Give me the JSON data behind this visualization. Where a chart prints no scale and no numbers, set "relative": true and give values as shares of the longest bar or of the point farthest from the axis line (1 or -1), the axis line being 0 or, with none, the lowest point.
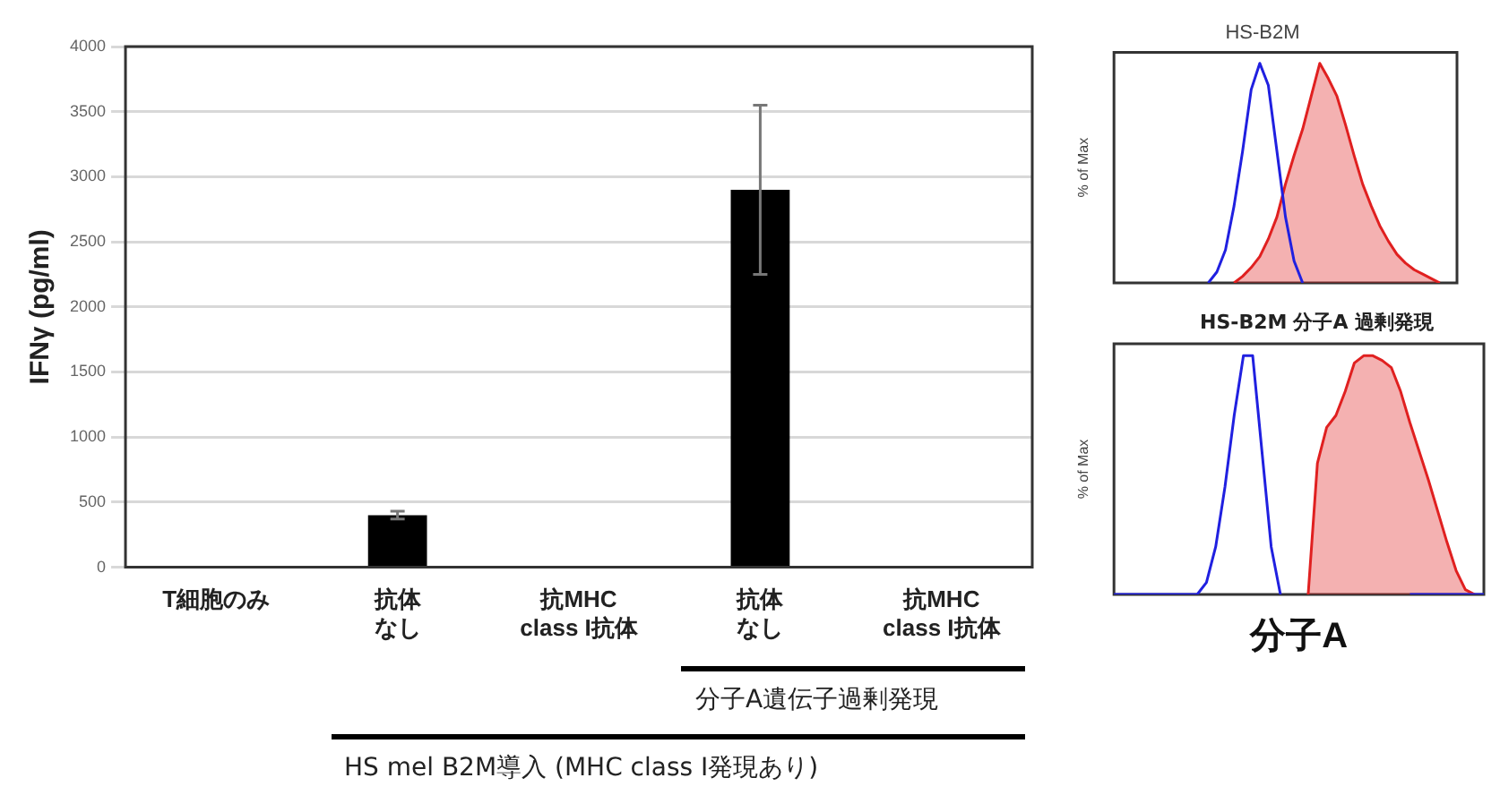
{
  "chart_data": [
    {
      "type": "bar",
      "ylabel": "IFNγ (pg/ml)",
      "categories": [
        "T細胞のみ",
        "抗体なし",
        "抗MHC class I抗体",
        "抗体なし",
        "抗MHC class I抗体"
      ],
      "values": [
        0,
        400,
        0,
        2900,
        0
      ],
      "errors": [
        null,
        30,
        null,
        650,
        null
      ],
      "color": "#000000",
      "ylim": [
        0,
        4000
      ],
      "yticks": [
        0,
        500,
        1000,
        1500,
        2000,
        2500,
        3000,
        3500,
        4000
      ],
      "grid": "y",
      "legend": false,
      "annotations": [
        "分子A遺伝子過剰発現",
        "HS mel B2M導入 (MHC class I発現あり)"
      ]
    },
    {
      "type": "area",
      "title": "HS-B2M",
      "ylabel": "% of Max",
      "relative": true,
      "tick_labels": false,
      "legend": false,
      "categories": [
        null,
        null,
        null,
        null,
        null,
        null,
        null,
        null,
        null,
        null,
        null,
        null,
        null,
        null,
        null,
        null,
        null,
        null,
        null,
        null,
        null,
        null,
        null,
        null,
        null,
        null,
        null,
        null,
        null,
        null,
        null,
        null,
        null,
        null,
        null,
        null,
        null,
        null,
        null,
        null,
        null
      ],
      "series": [
        {
          "type": "line",
          "color": "#2020e0",
          "values": [
            null,
            null,
            null,
            null,
            null,
            null,
            null,
            null,
            null,
            null,
            null,
            0,
            0.05,
            0.15,
            0.35,
            0.6,
            0.88,
            1,
            0.9,
            0.6,
            0.3,
            0.1,
            0,
            null,
            null,
            null,
            null,
            null,
            null,
            null,
            null,
            null,
            null,
            null,
            null,
            null,
            null,
            null,
            null,
            null,
            null
          ]
        },
        {
          "type": "area",
          "color": "#e02020",
          "values": [
            null,
            null,
            null,
            null,
            null,
            null,
            null,
            null,
            null,
            null,
            null,
            null,
            null,
            null,
            0,
            0.03,
            0.07,
            0.12,
            0.2,
            0.3,
            0.45,
            0.58,
            0.7,
            0.85,
            1,
            0.93,
            0.85,
            0.72,
            0.58,
            0.45,
            0.35,
            0.26,
            0.19,
            0.13,
            0.09,
            0.06,
            0.04,
            0.02,
            0,
            null,
            null
          ]
        }
      ]
    },
    {
      "type": "area",
      "ylabel": "% of Max",
      "xlabel": "分子A",
      "relative": true,
      "tick_labels": false,
      "legend": false,
      "categories": [
        null,
        null,
        null,
        null,
        null,
        null,
        null,
        null,
        null,
        null,
        null,
        null,
        null,
        null,
        null,
        null,
        null,
        null,
        null,
        null,
        null,
        null,
        null,
        null,
        null,
        null,
        null,
        null,
        null,
        null,
        null,
        null,
        null,
        null,
        null,
        null,
        null,
        null,
        null,
        null,
        null
      ],
      "series": [
        {
          "type": "line",
          "name": "HS-B2M",
          "color": "#2020e0",
          "values": [
            0,
            0,
            0,
            0,
            0,
            0,
            0,
            0,
            0,
            0,
            0.05,
            0.2,
            0.45,
            0.75,
            1,
            1,
            0.6,
            0.2,
            0,
            null,
            null,
            null,
            null,
            null,
            null,
            null,
            null,
            null,
            null,
            null,
            null,
            null,
            0,
            0,
            0,
            0,
            0,
            0,
            0,
            0,
            0
          ]
        },
        {
          "type": "area",
          "name": "分子A 過剰発現",
          "color": "#e02020",
          "values": [
            null,
            null,
            null,
            null,
            null,
            null,
            null,
            null,
            null,
            null,
            null,
            null,
            null,
            null,
            null,
            null,
            null,
            null,
            null,
            null,
            null,
            0,
            0.55,
            0.7,
            0.75,
            0.85,
            0.97,
            1,
            1,
            0.98,
            0.95,
            0.85,
            0.72,
            0.6,
            0.48,
            0.35,
            0.22,
            0.1,
            0.02,
            0,
            null
          ]
        }
      ]
    }
  ]
}
